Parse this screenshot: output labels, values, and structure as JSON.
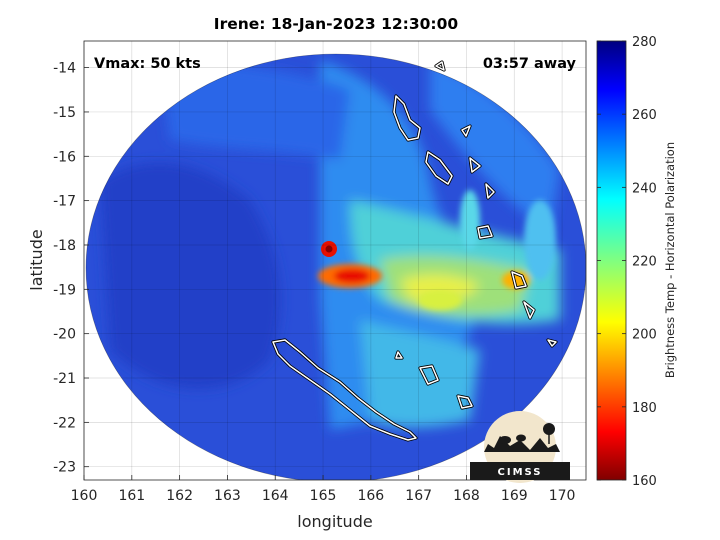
{
  "chart_data": {
    "type": "heatmap",
    "title": "Irene: 18-Jan-2023 12:30:00",
    "xlabel": "longitude",
    "ylabel": "latitude",
    "xlim": [
      160,
      170.5
    ],
    "ylim": [
      -23.3,
      -13.4
    ],
    "xticks": [
      "160",
      "161",
      "162",
      "163",
      "164",
      "165",
      "166",
      "167",
      "168",
      "169",
      "170"
    ],
    "yticks": [
      "-14",
      "-15",
      "-16",
      "-17",
      "-18",
      "-19",
      "-20",
      "-21",
      "-22",
      "-23"
    ],
    "grid": true,
    "annotations": {
      "vmax": "Vmax: 50 kts",
      "time_offset": "03:57 away"
    },
    "colorbar": {
      "label": "Brightness Temp - Horizontal Polarization",
      "range": [
        160,
        280
      ],
      "ticks": [
        "160",
        "180",
        "200",
        "220",
        "240",
        "260",
        "280"
      ],
      "colormap": "jet"
    },
    "swath_center": [
      165.3,
      -18.35
    ],
    "features": [
      {
        "lon": 165.1,
        "lat": -18.1,
        "value": 172
      },
      {
        "lon": 165.4,
        "lat": -18.9,
        "value": 190
      },
      {
        "lon": 168.8,
        "lat": -18.8,
        "value": 195
      },
      {
        "lon": 167.5,
        "lat": -19.4,
        "value": 215
      },
      {
        "lon": 167.8,
        "lat": -20.6,
        "value": 230
      },
      {
        "lon": 167.0,
        "lat": -17.2,
        "value": 240
      },
      {
        "lon": 163.0,
        "lat": -18.5,
        "value": 262
      }
    ],
    "logo_text": "CIMSS"
  }
}
